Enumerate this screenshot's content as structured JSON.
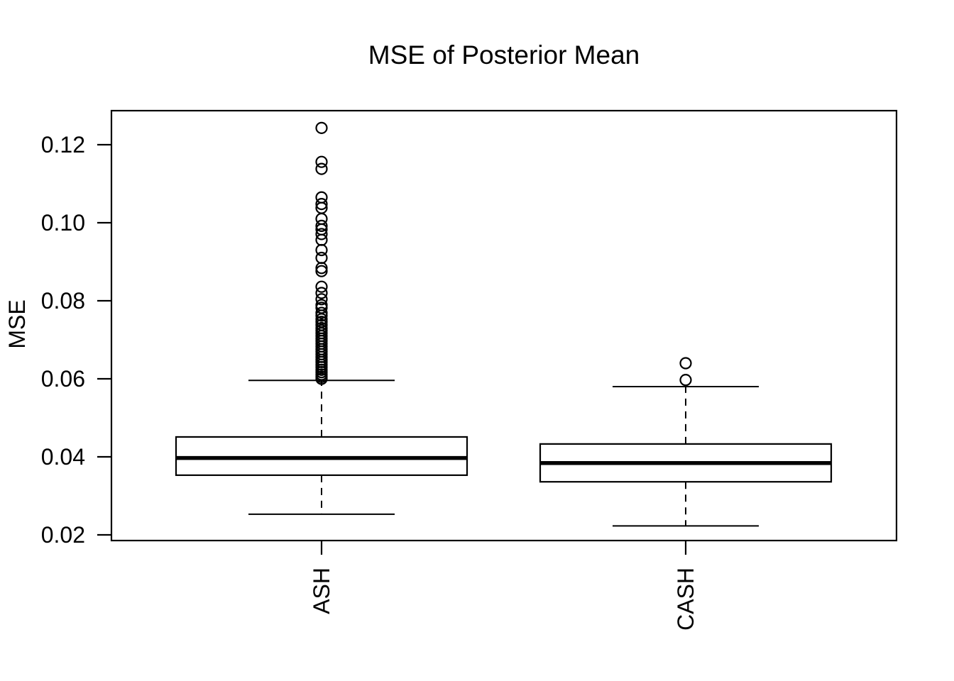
{
  "figure": {
    "background": "#ffffff"
  },
  "chart_data": {
    "type": "boxplot",
    "title": "MSE of Posterior Mean",
    "xlabel": "",
    "ylabel": "MSE",
    "categories": [
      "ASH",
      "CASH"
    ],
    "y_ticks": [
      0.02,
      0.04,
      0.06,
      0.08,
      0.1,
      0.12
    ],
    "y_tick_labels": [
      "0.02",
      "0.04",
      "0.06",
      "0.08",
      "0.10",
      "0.12"
    ],
    "ylim": [
      0.0185,
      0.1287
    ],
    "grid": false,
    "legend": "none",
    "orientation": "vertical",
    "colors": {
      "stroke": "#000000",
      "box_fill": "#ffffff",
      "background": "#ffffff"
    },
    "series": [
      {
        "name": "ASH",
        "whisker_low": 0.0253,
        "q1": 0.0353,
        "median": 0.0397,
        "q3": 0.0451,
        "whisker_high": 0.0596,
        "outliers": [
          0.1243,
          0.1156,
          0.1138,
          0.1065,
          0.1048,
          0.1038,
          0.101,
          0.0992,
          0.0983,
          0.0971,
          0.0956,
          0.093,
          0.091,
          0.0884,
          0.0876,
          0.0836,
          0.082,
          0.0804,
          0.0789,
          0.0782,
          0.0769,
          0.0762,
          0.0753,
          0.0746,
          0.0738,
          0.073,
          0.0724,
          0.0717,
          0.071,
          0.0703,
          0.0697,
          0.069,
          0.0683,
          0.0676,
          0.067,
          0.0663,
          0.0656,
          0.0649,
          0.0643,
          0.0636,
          0.063,
          0.0623,
          0.0617,
          0.0611,
          0.0605,
          0.06
        ]
      },
      {
        "name": "CASH",
        "whisker_low": 0.0223,
        "q1": 0.0336,
        "median": 0.0384,
        "q3": 0.0433,
        "whisker_high": 0.058,
        "outliers": [
          0.064,
          0.0597
        ]
      }
    ]
  }
}
